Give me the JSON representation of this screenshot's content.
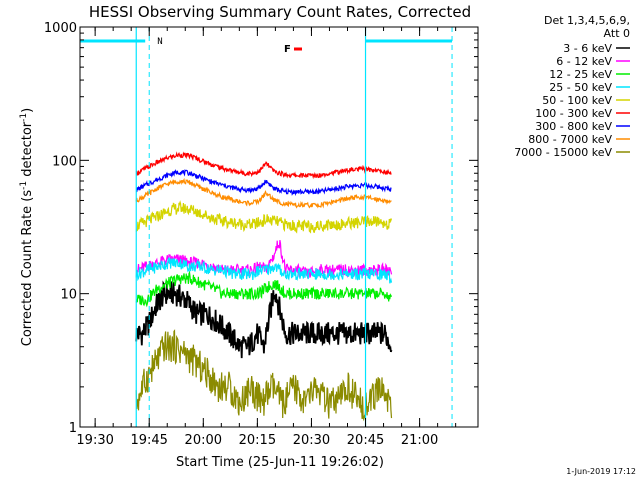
{
  "chart_data": {
    "type": "line",
    "title": "HESSI Observing Summary Count Rates, Corrected",
    "xlabel": "Start Time (25-Jun-11 19:26:02)",
    "ylabel_prefix": "Corrected Count Rate (s",
    "ylabel_sup1": "-1",
    "ylabel_mid": " detector",
    "ylabel_sup2": "-1",
    "ylabel_suffix": ")",
    "y_scale": "log",
    "ylim": [
      1,
      1000
    ],
    "xlim": [
      19.43,
      21.27
    ],
    "x_ticks": [
      {
        "label": "19:30",
        "value": 19.5
      },
      {
        "label": "19:45",
        "value": 19.75
      },
      {
        "label": "20:00",
        "value": 20.0
      },
      {
        "label": "20:15",
        "value": 20.25
      },
      {
        "label": "20:30",
        "value": 20.5
      },
      {
        "label": "20:45",
        "value": 20.75
      },
      {
        "label": "21:00",
        "value": 21.0
      }
    ],
    "y_ticks": [
      {
        "label": "1",
        "value": 1
      },
      {
        "label": "10",
        "value": 10
      },
      {
        "label": "100",
        "value": 100
      },
      {
        "label": "1000",
        "value": 1000
      }
    ],
    "legend_header": [
      "Det 1,3,4,5,6,9,",
      "Att 0"
    ],
    "series": [
      {
        "name": "3 - 6 keV",
        "color": "#000000",
        "x": [
          19.69,
          19.72,
          19.75,
          19.78,
          19.82,
          19.87,
          19.92,
          19.97,
          20.02,
          20.07,
          20.12,
          20.17,
          20.21,
          20.25,
          20.28,
          20.33,
          20.38,
          20.43,
          20.48,
          20.53,
          20.58,
          20.63,
          20.68,
          20.73,
          20.78,
          20.84,
          20.87
        ],
        "y": [
          5,
          5,
          6,
          8,
          10,
          10,
          9,
          7,
          7,
          6,
          5,
          4,
          4,
          5,
          4,
          11,
          5,
          5,
          5,
          5,
          5,
          5,
          5,
          5,
          5,
          5,
          4
        ]
      },
      {
        "name": "6 - 12 keV",
        "color": "#ff00ff",
        "x": [
          19.69,
          19.74,
          19.79,
          19.84,
          19.89,
          19.94,
          19.99,
          20.04,
          20.09,
          20.14,
          20.19,
          20.23,
          20.26,
          20.29,
          20.33,
          20.35,
          20.38,
          20.43,
          20.48,
          20.53,
          20.58,
          20.63,
          20.68,
          20.73,
          20.78,
          20.84,
          20.87
        ],
        "y": [
          15,
          16,
          17,
          18,
          18,
          17,
          17,
          16,
          15,
          15,
          15,
          15,
          16,
          15,
          20,
          25,
          15,
          15,
          14,
          15,
          15,
          15,
          15,
          15,
          15,
          15,
          15
        ]
      },
      {
        "name": "12 - 25 keV",
        "color": "#00ee00",
        "x": [
          19.69,
          19.74,
          19.79,
          19.84,
          19.89,
          19.94,
          19.99,
          20.04,
          20.09,
          20.14,
          20.19,
          20.23,
          20.26,
          20.29,
          20.33,
          20.38,
          20.43,
          20.48,
          20.53,
          20.58,
          20.63,
          20.68,
          20.73,
          20.78,
          20.84,
          20.87
        ],
        "y": [
          9,
          9,
          11,
          12,
          13,
          13,
          12,
          11,
          10,
          10,
          10,
          10,
          10,
          11,
          12,
          10,
          10,
          10,
          10,
          10,
          10,
          10,
          10,
          10,
          10,
          9
        ]
      },
      {
        "name": "25 - 50 keV",
        "color": "#00e5ff",
        "x": [
          19.69,
          19.74,
          19.79,
          19.84,
          19.89,
          19.94,
          19.99,
          20.04,
          20.09,
          20.14,
          20.19,
          20.23,
          20.26,
          20.29,
          20.33,
          20.38,
          20.43,
          20.48,
          20.53,
          20.58,
          20.63,
          20.68,
          20.73,
          20.78,
          20.84,
          20.87
        ],
        "y": [
          14,
          15,
          16,
          17,
          17,
          16,
          16,
          15,
          15,
          14,
          14,
          14,
          15,
          15,
          16,
          14,
          14,
          14,
          14,
          14,
          14,
          14,
          14,
          14,
          14,
          13
        ]
      },
      {
        "name": "50 - 100 keV",
        "color": "#d4d400",
        "x": [
          19.69,
          19.74,
          19.79,
          19.84,
          19.89,
          19.94,
          19.99,
          20.04,
          20.09,
          20.14,
          20.19,
          20.23,
          20.26,
          20.29,
          20.33,
          20.38,
          20.43,
          20.48,
          20.53,
          20.58,
          20.63,
          20.68,
          20.73,
          20.78,
          20.84,
          20.87
        ],
        "y": [
          32,
          35,
          38,
          42,
          44,
          43,
          40,
          37,
          35,
          34,
          33,
          33,
          34,
          36,
          35,
          33,
          32,
          32,
          32,
          33,
          33,
          34,
          34,
          35,
          34,
          33
        ]
      },
      {
        "name": "100 - 300 keV",
        "color": "#ff0000",
        "x": [
          19.69,
          19.74,
          19.79,
          19.84,
          19.89,
          19.94,
          19.99,
          20.04,
          20.09,
          20.14,
          20.19,
          20.23,
          20.26,
          20.29,
          20.33,
          20.38,
          20.43,
          20.48,
          20.53,
          20.58,
          20.63,
          20.68,
          20.73,
          20.78,
          20.84,
          20.87
        ],
        "y": [
          80,
          88,
          97,
          105,
          110,
          108,
          100,
          93,
          87,
          83,
          80,
          80,
          83,
          95,
          82,
          78,
          77,
          77,
          77,
          80,
          82,
          85,
          86,
          85,
          82,
          80
        ]
      },
      {
        "name": "300 - 800 keV",
        "color": "#0000ff",
        "x": [
          19.69,
          19.74,
          19.79,
          19.84,
          19.89,
          19.94,
          19.99,
          20.04,
          20.09,
          20.14,
          20.19,
          20.23,
          20.26,
          20.29,
          20.33,
          20.38,
          20.43,
          20.48,
          20.53,
          20.58,
          20.63,
          20.68,
          20.73,
          20.78,
          20.84,
          20.87
        ],
        "y": [
          60,
          66,
          72,
          78,
          82,
          80,
          74,
          69,
          65,
          62,
          60,
          60,
          62,
          70,
          61,
          58,
          58,
          58,
          58,
          60,
          62,
          64,
          65,
          64,
          62,
          60
        ]
      },
      {
        "name": "800 - 7000 keV",
        "color": "#ff8c00",
        "x": [
          19.69,
          19.74,
          19.79,
          19.84,
          19.89,
          19.94,
          19.99,
          20.04,
          20.09,
          20.14,
          20.19,
          20.23,
          20.26,
          20.29,
          20.33,
          20.38,
          20.43,
          20.48,
          20.53,
          20.58,
          20.63,
          20.68,
          20.73,
          20.78,
          20.84,
          20.87
        ],
        "y": [
          50,
          55,
          62,
          67,
          70,
          68,
          62,
          57,
          53,
          50,
          48,
          48,
          50,
          57,
          50,
          47,
          46,
          46,
          46,
          48,
          50,
          52,
          53,
          52,
          50,
          48
        ]
      },
      {
        "name": "7000 - 15000 keV",
        "color": "#8b8b00",
        "x": [
          19.69,
          19.72,
          19.75,
          19.78,
          19.82,
          19.87,
          19.92,
          19.97,
          20.02,
          20.07,
          20.12,
          20.17,
          20.22,
          20.27,
          20.32,
          20.37,
          20.42,
          20.47,
          20.52,
          20.57,
          20.62,
          20.67,
          20.72,
          20.77,
          20.82,
          20.87
        ],
        "y": [
          1.5,
          2,
          2.5,
          3,
          4,
          4,
          3.5,
          3,
          2.5,
          2,
          2,
          1.5,
          2,
          1.5,
          2,
          1.5,
          2,
          1.5,
          2,
          1.5,
          1.5,
          2,
          1.5,
          1.5,
          2,
          1.5
        ]
      }
    ],
    "flare_label": "F",
    "flare_color": "#ff0000",
    "flag_marker_label": "N",
    "cyan_color": "#00e5ff",
    "cyan_vertical_solid_x": [
      19.69,
      20.75
    ],
    "cyan_vertical_dashed_x": [
      19.75,
      21.15
    ],
    "footer_date": "1-Jun-2019 17:12"
  }
}
